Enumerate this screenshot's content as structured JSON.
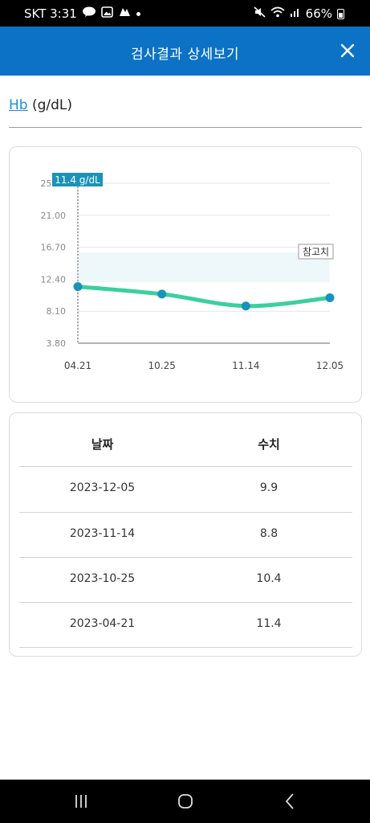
{
  "status_bar": {
    "time": "SKT 3:31",
    "battery": "66%"
  },
  "header": {
    "title": "검사결과 상세보기"
  },
  "metric": {
    "name": "Hb",
    "unit": "(g/dL)"
  },
  "chart": {
    "tooltip": "11.4 g/dL",
    "reference_label": "참고치",
    "colors": {
      "line": "#3ccf9e",
      "point": "#1a93b8",
      "tooltip_bg": "#1a93b8",
      "band": "#eef8fb"
    }
  },
  "chart_data": {
    "type": "line",
    "categories": [
      "04.21",
      "10.25",
      "11.14",
      "12.05"
    ],
    "values": [
      11.4,
      10.4,
      8.8,
      9.9
    ],
    "ylim": [
      3.8,
      25.3
    ],
    "yticks": [
      "3.80",
      "8.10",
      "12.40",
      "16.70",
      "21.00",
      "25.30"
    ],
    "reference_range": [
      12.0,
      16.0
    ]
  },
  "table": {
    "headers": {
      "date": "날짜",
      "value": "수치"
    },
    "rows": [
      {
        "date": "2023-12-05",
        "value": "9.9"
      },
      {
        "date": "2023-11-14",
        "value": "8.8"
      },
      {
        "date": "2023-10-25",
        "value": "10.4"
      },
      {
        "date": "2023-04-21",
        "value": "11.4"
      }
    ]
  }
}
